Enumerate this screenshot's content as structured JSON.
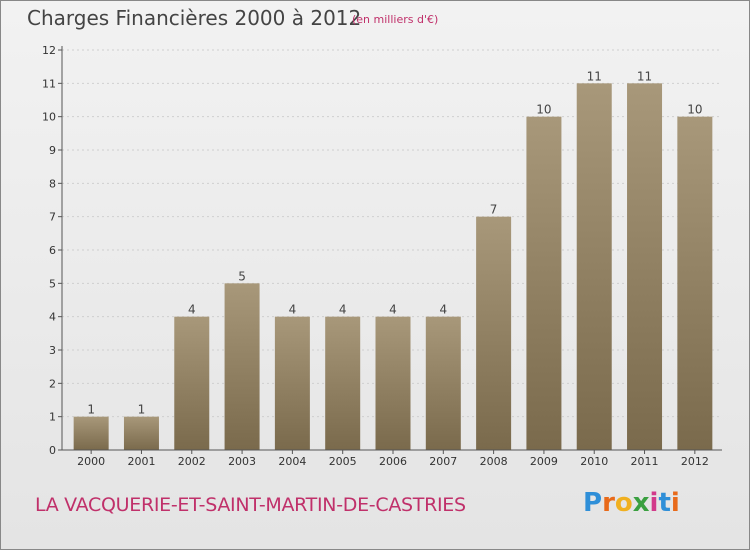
{
  "header": {
    "title": "Charges Financières 2000 à 2012",
    "subtitle": "(en milliers d'€)"
  },
  "footer": {
    "commune": "LA VACQUERIE-ET-SAINT-MARTIN-DE-CASTRIES",
    "logo_letters": [
      "P",
      "r",
      "o",
      "x",
      "i",
      "t",
      "i"
    ],
    "logo_colors": [
      "#2f8fd8",
      "#e86a1a",
      "#f0b020",
      "#3aa040",
      "#d23a8a",
      "#2f8fd8",
      "#e86a1a"
    ]
  },
  "colors": {
    "bar_top": "#a8987a",
    "bar_bottom": "#7a6a4c",
    "axis": "#555555",
    "grid": "#cfcfcf"
  },
  "chart_data": {
    "type": "bar",
    "categories": [
      "2000",
      "2001",
      "2002",
      "2003",
      "2004",
      "2005",
      "2006",
      "2007",
      "2008",
      "2009",
      "2010",
      "2011",
      "2012"
    ],
    "values": [
      1,
      1,
      4,
      5,
      4,
      4,
      4,
      4,
      7,
      10,
      11,
      11,
      10
    ],
    "data_labels": [
      "1",
      "1",
      "4",
      "5",
      "4",
      "4",
      "4",
      "4",
      "7",
      "10",
      "11",
      "11",
      "10"
    ],
    "yticks": [
      "0",
      "1",
      "2",
      "3",
      "4",
      "5",
      "6",
      "7",
      "8",
      "9",
      "10",
      "11",
      "12"
    ],
    "ylim": [
      0,
      12
    ],
    "title": "Charges Financières 2000 à 2012",
    "subtitle": "(en milliers d'€)",
    "grid": true,
    "legend": "none"
  }
}
